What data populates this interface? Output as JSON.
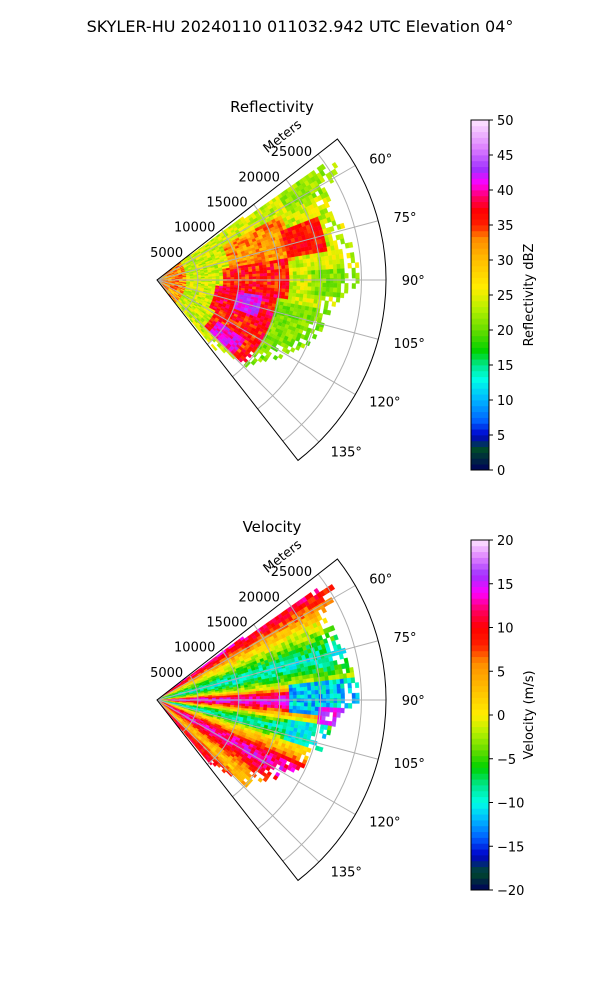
{
  "figure": {
    "suptitle": "SKYLER-HU  20240110  011032.942 UTC Elevation 04°"
  },
  "colors": {
    "zero_ring": "#000000",
    "grid": "#b0b0b0"
  },
  "chart_data": [
    {
      "type": "heatmap",
      "projection": "polar-sector",
      "title": "Reflectivity",
      "radial_label": "Meters",
      "radial_ticks": [
        5000,
        10000,
        15000,
        20000,
        25000
      ],
      "radial_tick_labels": [
        "5000",
        "10000",
        "15000",
        "20000",
        "25000"
      ],
      "rlim": [
        0,
        28000
      ],
      "theta_ticks": [
        60,
        75,
        90,
        105,
        120,
        135
      ],
      "theta_tick_labels": [
        "60°",
        "75°",
        "90°",
        "105°",
        "120°",
        "135°"
      ],
      "theta_range": [
        52,
        142
      ],
      "grid": true,
      "colorbar": {
        "label": "Reflectivity dBZ",
        "vmin": 0,
        "vmax": 50,
        "ticks": [
          0,
          5,
          10,
          15,
          20,
          25,
          30,
          35,
          40,
          45,
          50
        ],
        "tick_labels": [
          "0",
          "5",
          "10",
          "15",
          "20",
          "25",
          "30",
          "35",
          "40",
          "45",
          "50"
        ],
        "stops": [
          {
            "v": 0,
            "c": "#00005a"
          },
          {
            "v": 3,
            "c": "#004a2a"
          },
          {
            "v": 5,
            "c": "#0000cc"
          },
          {
            "v": 7,
            "c": "#0060ff"
          },
          {
            "v": 10,
            "c": "#00b4ff"
          },
          {
            "v": 13,
            "c": "#00ffe6"
          },
          {
            "v": 15,
            "c": "#00e68c"
          },
          {
            "v": 17,
            "c": "#00d200"
          },
          {
            "v": 20,
            "c": "#66dd00"
          },
          {
            "v": 23,
            "c": "#b4f000"
          },
          {
            "v": 26,
            "c": "#ffee00"
          },
          {
            "v": 30,
            "c": "#ffbe00"
          },
          {
            "v": 33,
            "c": "#ff8c00"
          },
          {
            "v": 35,
            "c": "#ff2000"
          },
          {
            "v": 37,
            "c": "#ff0000"
          },
          {
            "v": 39,
            "c": "#ff0064"
          },
          {
            "v": 41,
            "c": "#ff00ff"
          },
          {
            "v": 43,
            "c": "#a030ff"
          },
          {
            "v": 46,
            "c": "#dd80ff"
          },
          {
            "v": 50,
            "c": "#ffe6ff"
          }
        ]
      },
      "field": {
        "range_extent": [
          [
            52,
            0
          ],
          [
            56,
            26000
          ],
          [
            58,
            26000
          ],
          [
            62,
            23500
          ],
          [
            68,
            23000
          ],
          [
            75,
            23500
          ],
          [
            80,
            24000
          ],
          [
            85,
            24500
          ],
          [
            90,
            24700
          ],
          [
            92,
            24000
          ],
          [
            98,
            21500
          ],
          [
            104,
            21000
          ],
          [
            110,
            20500
          ],
          [
            116,
            19000
          ],
          [
            122,
            17500
          ],
          [
            128,
            16000
          ],
          [
            134,
            15000
          ],
          [
            136,
            12000
          ],
          [
            140,
            11000
          ],
          [
            142,
            0
          ]
        ],
        "features": [
          {
            "theta_range": [
              52,
              142
            ],
            "r_range": [
              0,
              28000
            ],
            "value": 24,
            "noise": 3
          },
          {
            "theta_range": [
              52,
              142
            ],
            "r_range": [
              0,
              3500
            ],
            "value": 32,
            "noise": 5
          },
          {
            "theta_range": [
              62,
              82
            ],
            "r_range": [
              9000,
              17000
            ],
            "value": 32,
            "noise": 3
          },
          {
            "theta_range": [
              80,
              98
            ],
            "r_range": [
              8000,
              16000
            ],
            "value": 36,
            "noise": 3
          },
          {
            "theta_range": [
              96,
              118
            ],
            "r_range": [
              7000,
              15000
            ],
            "value": 37,
            "noise": 3
          },
          {
            "theta_range": [
              114,
              134
            ],
            "r_range": [
              8000,
              15000
            ],
            "value": 36,
            "noise": 3
          },
          {
            "theta_range": [
              98,
              110
            ],
            "r_range": [
              10000,
              13000
            ],
            "value": 42,
            "noise": 2
          },
          {
            "theta_range": [
              124,
              134
            ],
            "r_range": [
              9000,
              13000
            ],
            "value": 41,
            "noise": 2
          },
          {
            "theta_range": [
              68,
              80
            ],
            "r_range": [
              16000,
              21000
            ],
            "value": 36,
            "noise": 2
          },
          {
            "theta_range": [
              86,
              96
            ],
            "r_range": [
              19000,
              24700
            ],
            "value": 21,
            "noise": 2
          },
          {
            "theta_range": [
              52,
              62
            ],
            "r_range": [
              18000,
              26000
            ],
            "value": 22,
            "noise": 2
          },
          {
            "theta_range": [
              100,
              142
            ],
            "r_range": [
              15000,
              22000
            ],
            "value": 21,
            "noise": 2
          }
        ]
      }
    },
    {
      "type": "heatmap",
      "projection": "polar-sector",
      "title": "Velocity",
      "radial_label": "Meters",
      "radial_ticks": [
        5000,
        10000,
        15000,
        20000,
        25000
      ],
      "radial_tick_labels": [
        "5000",
        "10000",
        "15000",
        "20000",
        "25000"
      ],
      "rlim": [
        0,
        28000
      ],
      "theta_ticks": [
        60,
        75,
        90,
        105,
        120,
        135
      ],
      "theta_tick_labels": [
        "60°",
        "75°",
        "90°",
        "105°",
        "120°",
        "135°"
      ],
      "theta_range": [
        52,
        142
      ],
      "grid": true,
      "colorbar": {
        "label": "Velocity (m/s)",
        "vmin": -20,
        "vmax": 20,
        "ticks": [
          -20,
          -15,
          -10,
          -5,
          0,
          5,
          10,
          15,
          20
        ],
        "tick_labels": [
          "−20",
          "−15",
          "−10",
          "−5",
          "0",
          "5",
          "10",
          "15",
          "20"
        ],
        "stops": [
          {
            "v": -20,
            "c": "#00005a"
          },
          {
            "v": -18,
            "c": "#004a2a"
          },
          {
            "v": -16,
            "c": "#0000cc"
          },
          {
            "v": -14,
            "c": "#0060ff"
          },
          {
            "v": -12,
            "c": "#00b4ff"
          },
          {
            "v": -10,
            "c": "#00ffe6"
          },
          {
            "v": -8,
            "c": "#00e68c"
          },
          {
            "v": -6,
            "c": "#00d200"
          },
          {
            "v": -4,
            "c": "#66dd00"
          },
          {
            "v": -2,
            "c": "#b4f000"
          },
          {
            "v": 0,
            "c": "#ffee00"
          },
          {
            "v": 3,
            "c": "#ffbe00"
          },
          {
            "v": 6,
            "c": "#ff8c00"
          },
          {
            "v": 8,
            "c": "#ff2000"
          },
          {
            "v": 10,
            "c": "#ff0000"
          },
          {
            "v": 12,
            "c": "#ff0064"
          },
          {
            "v": 14,
            "c": "#ff00ff"
          },
          {
            "v": 16,
            "c": "#a030ff"
          },
          {
            "v": 18,
            "c": "#dd80ff"
          },
          {
            "v": 20,
            "c": "#ffe6ff"
          }
        ]
      },
      "field": {
        "range_extent": [
          [
            52,
            0
          ],
          [
            56,
            26000
          ],
          [
            58,
            26000
          ],
          [
            62,
            23500
          ],
          [
            68,
            23000
          ],
          [
            75,
            23500
          ],
          [
            80,
            24000
          ],
          [
            85,
            24500
          ],
          [
            90,
            24700
          ],
          [
            92,
            24000
          ],
          [
            98,
            21500
          ],
          [
            104,
            21000
          ],
          [
            110,
            20500
          ],
          [
            116,
            19000
          ],
          [
            122,
            17500
          ],
          [
            128,
            16000
          ],
          [
            134,
            15000
          ],
          [
            136,
            12000
          ],
          [
            140,
            11000
          ],
          [
            142,
            0
          ]
        ],
        "theta_profile": [
          [
            52,
            14
          ],
          [
            56,
            11
          ],
          [
            60,
            6
          ],
          [
            64,
            1
          ],
          [
            68,
            -3
          ],
          [
            72,
            -7
          ],
          [
            76,
            -10
          ],
          [
            80,
            -6
          ],
          [
            84,
            -1
          ],
          [
            87,
            10
          ],
          [
            90,
            15
          ],
          [
            93,
            12
          ],
          [
            96,
            4
          ],
          [
            99,
            -4
          ],
          [
            102,
            -9
          ],
          [
            105,
            -7
          ],
          [
            108,
            0
          ],
          [
            112,
            5
          ],
          [
            116,
            12
          ],
          [
            120,
            14
          ],
          [
            124,
            10
          ],
          [
            128,
            5
          ],
          [
            132,
            2
          ],
          [
            136,
            9
          ],
          [
            142,
            11
          ]
        ],
        "features": [
          {
            "theta_range": [
              84,
              96
            ],
            "r_range": [
              16000,
              24700
            ],
            "value": -11,
            "noise": 3
          },
          {
            "theta_range": [
              98,
              108
            ],
            "r_range": [
              16000,
              21000
            ],
            "value": -10,
            "noise": 2
          },
          {
            "theta_range": [
              92,
              98
            ],
            "r_range": [
              20000,
              24000
            ],
            "value": 15,
            "noise": 2
          }
        ]
      }
    }
  ]
}
